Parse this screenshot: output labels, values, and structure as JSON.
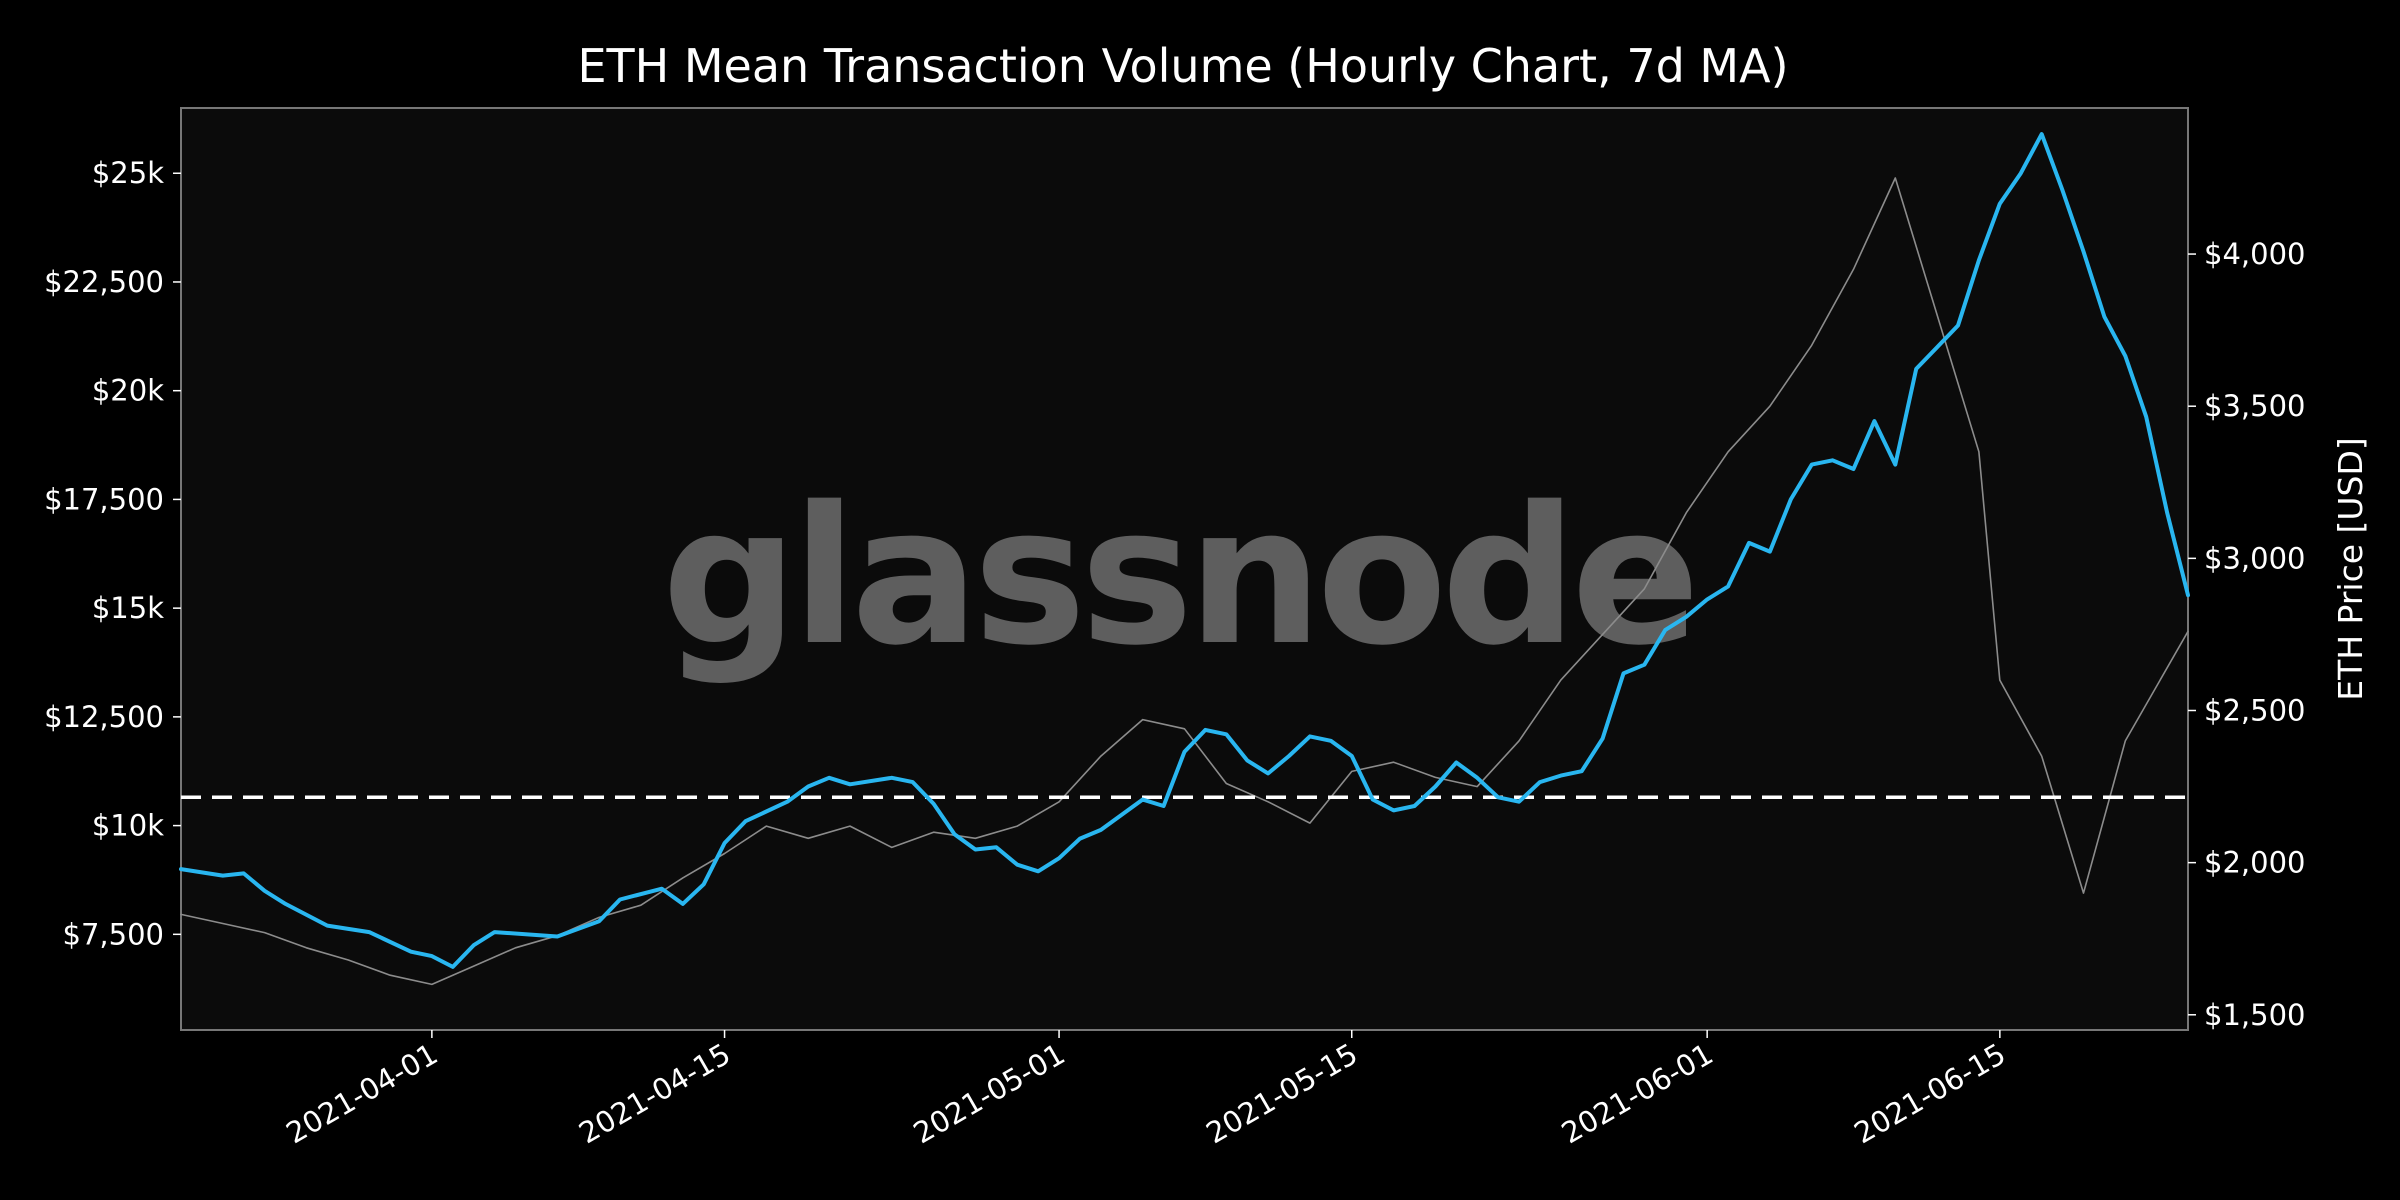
{
  "chart_data": {
    "type": "line",
    "title": "ETH Mean Transaction Volume (Hourly Chart, 7d MA)",
    "watermark": "glassnode",
    "xlabel": "",
    "ylabel_left": "",
    "ylabel_right": "ETH Price [USD]",
    "x_tick_labels": [
      "2021-04-01",
      "2021-04-15",
      "2021-05-01",
      "2021-05-15",
      "2021-06-01",
      "2021-06-15"
    ],
    "x_ticks": [
      "2021-04-01",
      "2021-04-15",
      "2021-05-01",
      "2021-05-15",
      "2021-06-01",
      "2021-06-15"
    ],
    "xlim": [
      "2021-03-20",
      "2021-06-24"
    ],
    "y_left_tick_labels": [
      "$7,500",
      "$10k",
      "$12,500",
      "$15k",
      "$17,500",
      "$20k",
      "$22,500",
      "$25k"
    ],
    "y_left_ticks": [
      7500,
      10000,
      12500,
      15000,
      17500,
      20000,
      22500,
      25000
    ],
    "ylim_left": [
      5300,
      26500
    ],
    "y_right_tick_labels": [
      "$1,500",
      "$2,000",
      "$2,500",
      "$3,000",
      "$3,500",
      "$4,000"
    ],
    "y_right_ticks": [
      1500,
      2000,
      2500,
      3000,
      3500,
      4000
    ],
    "ylim_right": [
      1450,
      4480
    ],
    "grid": false,
    "reference_line": {
      "y": 10650,
      "style": "dashed",
      "color": "#ffffff"
    },
    "colors": {
      "background": "#000000",
      "plot_background": "#0b0b0b",
      "volume": "#29b6f0",
      "price": "#8c8c8c",
      "frame": "#777777"
    },
    "series": [
      {
        "axis": "left",
        "color": "#29b6f0",
        "points": [
          [
            "2021-03-20",
            9000
          ],
          [
            "2021-03-22",
            8850
          ],
          [
            "2021-03-23",
            8900
          ],
          [
            "2021-03-24",
            8500
          ],
          [
            "2021-03-25",
            8200
          ],
          [
            "2021-03-27",
            7700
          ],
          [
            "2021-03-29",
            7550
          ],
          [
            "2021-03-31",
            7100
          ],
          [
            "2021-04-01",
            7000
          ],
          [
            "2021-04-02",
            6750
          ],
          [
            "2021-04-03",
            7250
          ],
          [
            "2021-04-04",
            7550
          ],
          [
            "2021-04-07",
            7450
          ],
          [
            "2021-04-09",
            7800
          ],
          [
            "2021-04-10",
            8300
          ],
          [
            "2021-04-12",
            8550
          ],
          [
            "2021-04-13",
            8200
          ],
          [
            "2021-04-14",
            8650
          ],
          [
            "2021-04-15",
            9600
          ],
          [
            "2021-04-16",
            10100
          ],
          [
            "2021-04-18",
            10550
          ],
          [
            "2021-04-19",
            10900
          ],
          [
            "2021-04-20",
            11100
          ],
          [
            "2021-04-21",
            10950
          ],
          [
            "2021-04-23",
            11100
          ],
          [
            "2021-04-24",
            11000
          ],
          [
            "2021-04-25",
            10500
          ],
          [
            "2021-04-26",
            9800
          ],
          [
            "2021-04-27",
            9450
          ],
          [
            "2021-04-28",
            9500
          ],
          [
            "2021-04-29",
            9100
          ],
          [
            "2021-04-30",
            8950
          ],
          [
            "2021-05-01",
            9250
          ],
          [
            "2021-05-02",
            9700
          ],
          [
            "2021-05-03",
            9900
          ],
          [
            "2021-05-05",
            10600
          ],
          [
            "2021-05-06",
            10450
          ],
          [
            "2021-05-07",
            11700
          ],
          [
            "2021-05-08",
            12200
          ],
          [
            "2021-05-09",
            12100
          ],
          [
            "2021-05-10",
            11500
          ],
          [
            "2021-05-11",
            11200
          ],
          [
            "2021-05-12",
            11600
          ],
          [
            "2021-05-13",
            12050
          ],
          [
            "2021-05-14",
            11950
          ],
          [
            "2021-05-15",
            11600
          ],
          [
            "2021-05-16",
            10600
          ],
          [
            "2021-05-17",
            10350
          ],
          [
            "2021-05-18",
            10450
          ],
          [
            "2021-05-19",
            10900
          ],
          [
            "2021-05-20",
            11450
          ],
          [
            "2021-05-21",
            11100
          ],
          [
            "2021-05-22",
            10650
          ],
          [
            "2021-05-23",
            10550
          ],
          [
            "2021-05-24",
            11000
          ],
          [
            "2021-05-25",
            11150
          ],
          [
            "2021-05-26",
            11250
          ],
          [
            "2021-05-27",
            12000
          ],
          [
            "2021-05-28",
            13500
          ],
          [
            "2021-05-29",
            13700
          ],
          [
            "2021-05-30",
            14500
          ],
          [
            "2021-05-31",
            14800
          ],
          [
            "2021-06-01",
            15200
          ],
          [
            "2021-06-02",
            15500
          ],
          [
            "2021-06-03",
            16500
          ],
          [
            "2021-06-04",
            16300
          ],
          [
            "2021-06-05",
            17500
          ],
          [
            "2021-06-06",
            18300
          ],
          [
            "2021-06-07",
            18400
          ],
          [
            "2021-06-08",
            18200
          ],
          [
            "2021-06-09",
            19300
          ],
          [
            "2021-06-10",
            18300
          ],
          [
            "2021-06-11",
            20500
          ],
          [
            "2021-06-12",
            21000
          ],
          [
            "2021-06-13",
            21500
          ],
          [
            "2021-06-14",
            23000
          ],
          [
            "2021-06-15",
            24300
          ],
          [
            "2021-06-16",
            25000
          ],
          [
            "2021-06-17",
            25900
          ],
          [
            "2021-06-18",
            24600
          ],
          [
            "2021-06-19",
            23200
          ],
          [
            "2021-06-20",
            21700
          ],
          [
            "2021-06-21",
            20800
          ],
          [
            "2021-06-22",
            19400
          ],
          [
            "2021-06-23",
            17200
          ],
          [
            "2021-06-24",
            15300
          ]
        ]
      },
      {
        "axis": "right",
        "color": "#8c8c8c",
        "points": [
          [
            "2021-03-20",
            1830
          ],
          [
            "2021-03-22",
            1800
          ],
          [
            "2021-03-24",
            1770
          ],
          [
            "2021-03-26",
            1720
          ],
          [
            "2021-03-28",
            1680
          ],
          [
            "2021-03-30",
            1630
          ],
          [
            "2021-04-01",
            1600
          ],
          [
            "2021-04-03",
            1660
          ],
          [
            "2021-04-05",
            1720
          ],
          [
            "2021-04-07",
            1760
          ],
          [
            "2021-04-09",
            1820
          ],
          [
            "2021-04-11",
            1860
          ],
          [
            "2021-04-13",
            1950
          ],
          [
            "2021-04-15",
            2030
          ],
          [
            "2021-04-17",
            2120
          ],
          [
            "2021-04-19",
            2080
          ],
          [
            "2021-04-21",
            2120
          ],
          [
            "2021-04-23",
            2050
          ],
          [
            "2021-04-25",
            2100
          ],
          [
            "2021-04-27",
            2080
          ],
          [
            "2021-04-29",
            2120
          ],
          [
            "2021-05-01",
            2200
          ],
          [
            "2021-05-03",
            2350
          ],
          [
            "2021-05-05",
            2470
          ],
          [
            "2021-05-07",
            2440
          ],
          [
            "2021-05-09",
            2260
          ],
          [
            "2021-05-11",
            2200
          ],
          [
            "2021-05-13",
            2130
          ],
          [
            "2021-05-15",
            2300
          ],
          [
            "2021-05-17",
            2330
          ],
          [
            "2021-05-19",
            2280
          ],
          [
            "2021-05-21",
            2250
          ],
          [
            "2021-05-23",
            2400
          ],
          [
            "2021-05-25",
            2600
          ],
          [
            "2021-05-27",
            2750
          ],
          [
            "2021-05-29",
            2900
          ],
          [
            "2021-05-31",
            3150
          ],
          [
            "2021-06-02",
            3350
          ],
          [
            "2021-06-04",
            3500
          ],
          [
            "2021-06-06",
            3700
          ],
          [
            "2021-06-08",
            3950
          ],
          [
            "2021-06-10",
            4250
          ],
          [
            "2021-06-12",
            3800
          ],
          [
            "2021-06-14",
            3350
          ],
          [
            "2021-06-15",
            2600
          ],
          [
            "2021-06-17",
            2350
          ],
          [
            "2021-06-19",
            1900
          ],
          [
            "2021-06-21",
            2400
          ],
          [
            "2021-06-24",
            2760
          ]
        ]
      }
    ]
  }
}
